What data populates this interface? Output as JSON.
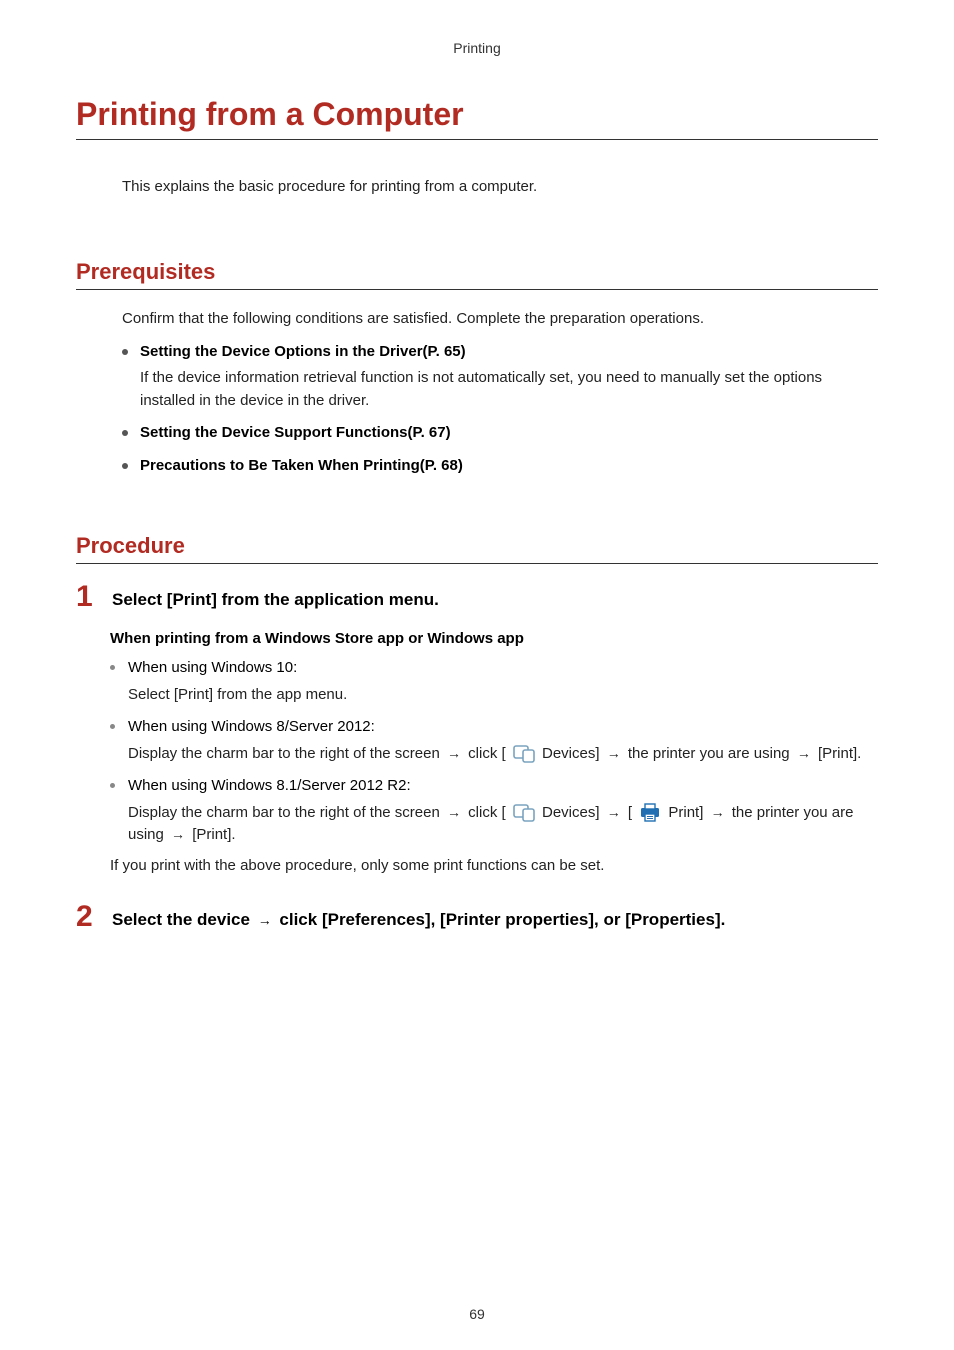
{
  "colors": {
    "accent": "#b22b22",
    "text": "#222222",
    "rule": "#333333",
    "bullet": "#555555",
    "sub_bullet": "#888888",
    "icon_outline": "#7aa3bf",
    "icon_blue": "#1f6fb2",
    "background": "#ffffff"
  },
  "header": {
    "category": "Printing"
  },
  "title": "Printing from a Computer",
  "intro": "This explains the basic procedure for printing from a computer.",
  "prerequisites": {
    "heading": "Prerequisites",
    "lead": "Confirm that the following conditions are satisfied. Complete the preparation operations.",
    "items": [
      {
        "label": "Setting the Device Options in the Driver(P. 65)",
        "note": "If the device information retrieval function is not automatically set, you need to manually set the options installed in the device in the driver."
      },
      {
        "label": "Setting the Device Support Functions(P. 67)"
      },
      {
        "label": "Precautions to Be Taken When Printing(P. 68)"
      }
    ]
  },
  "procedure": {
    "heading": "Procedure",
    "steps": [
      {
        "num": "1",
        "title": "Select [Print] from the application menu.",
        "sub_heading": "When printing from a Windows Store app or Windows app",
        "bullets": [
          {
            "lead": "When using Windows 10:",
            "detail_plain": "Select [Print] from the app menu."
          },
          {
            "lead": "When using Windows 8/Server 2012:",
            "detail_segments": [
              {
                "t": "text",
                "v": "Display the charm bar to the right of the screen "
              },
              {
                "t": "arrow"
              },
              {
                "t": "text",
                "v": " click [ "
              },
              {
                "t": "icon",
                "v": "devices"
              },
              {
                "t": "text",
                "v": " Devices] "
              },
              {
                "t": "arrow"
              },
              {
                "t": "text",
                "v": " the printer you are using "
              },
              {
                "t": "arrow"
              },
              {
                "t": "text",
                "v": " [Print]."
              }
            ]
          },
          {
            "lead": "When using Windows 8.1/Server 2012 R2:",
            "detail_segments": [
              {
                "t": "text",
                "v": "Display the charm bar to the right of the screen "
              },
              {
                "t": "arrow"
              },
              {
                "t": "text",
                "v": " click [ "
              },
              {
                "t": "icon",
                "v": "devices"
              },
              {
                "t": "text",
                "v": " Devices] "
              },
              {
                "t": "arrow"
              },
              {
                "t": "text",
                "v": " [ "
              },
              {
                "t": "icon",
                "v": "print"
              },
              {
                "t": "text",
                "v": " Print] "
              },
              {
                "t": "arrow"
              },
              {
                "t": "text",
                "v": " the printer you are using "
              },
              {
                "t": "arrow"
              },
              {
                "t": "text",
                "v": " [Print]."
              }
            ]
          }
        ],
        "after_note": "If you print with the above procedure, only some print functions can be set."
      },
      {
        "num": "2",
        "title_segments": [
          {
            "t": "text",
            "v": "Select the device "
          },
          {
            "t": "arrow"
          },
          {
            "t": "text",
            "v": " click [Preferences], [Printer properties], or [Properties]."
          }
        ]
      }
    ]
  },
  "page_number": "69",
  "glyphs": {
    "arrow": "→"
  }
}
